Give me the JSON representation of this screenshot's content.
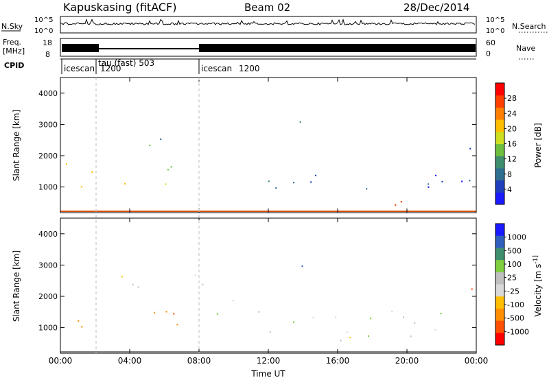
{
  "header": {
    "station": "Kapuskasing (fitACF)",
    "beam": "Beam 02",
    "date": "28/Dec/2014"
  },
  "strips": {
    "nsky_label": "N.Sky",
    "nsky_ticks": [
      "10^5",
      "10^0"
    ],
    "nsearch_label": "N.Search",
    "nsearch_ticks": [
      "10^5",
      "10^0"
    ],
    "freq_label_line1": "Freq.",
    "freq_label_line2": "[MHz]",
    "freq_ticks": [
      "18",
      "8"
    ],
    "nave_label": "Nave",
    "nave_ticks": [
      "60",
      "0"
    ],
    "cpid_label": "CPID",
    "cpid_segments": [
      {
        "start_hour": 0.0,
        "name": "icescan",
        "code": ""
      },
      {
        "start_hour": 2.0,
        "name": "tau (fast) 503",
        "code": "1200"
      },
      {
        "start_hour": 8.0,
        "name": "icescan",
        "code": "1200"
      }
    ]
  },
  "chart_data": [
    {
      "type": "heatmap",
      "panel": "power",
      "ylabel": "Slant Range [km]",
      "xlabel": "Time UT",
      "xlim_hours": [
        0,
        24
      ],
      "x_ticks": [
        "00:00",
        "04:00",
        "08:00",
        "12:00",
        "16:00",
        "20:00",
        "00:00"
      ],
      "ylim_km": [
        180,
        4500
      ],
      "y_ticks": [
        "1000",
        "2000",
        "3000",
        "4000"
      ],
      "colorbar": {
        "label": "Power [dB]",
        "ticks": [
          "4",
          "8",
          "12",
          "16",
          "20",
          "24",
          "28"
        ],
        "colors": [
          "#1a1aff",
          "#1f3fbf",
          "#2f6f8f",
          "#3f8f6f",
          "#6fbf3f",
          "#cfdf1f",
          "#ffbf00",
          "#ff7f00",
          "#ff3f00",
          "#ff0000"
        ]
      },
      "regions": [
        {
          "t0": 0.0,
          "t1": 1.8,
          "r0": 650,
          "r1": 1900,
          "val": 20
        },
        {
          "t0": 0.2,
          "t1": 1.0,
          "r0": 700,
          "r1": 900,
          "val": 28
        },
        {
          "t0": 2.7,
          "t1": 6.9,
          "r0": 950,
          "r1": 1800,
          "val": 18
        },
        {
          "t0": 4.2,
          "t1": 7.5,
          "r0": 2150,
          "r1": 2700,
          "val": 10
        },
        {
          "t0": 8.5,
          "t1": 24.0,
          "r0": 900,
          "r1": 1600,
          "val": 8
        },
        {
          "t0": 13.8,
          "t1": 14.8,
          "r0": 2900,
          "r1": 3600,
          "val": 14
        },
        {
          "t0": 17.0,
          "t1": 22.5,
          "r0": 380,
          "r1": 700,
          "val": 24
        },
        {
          "t0": 23.0,
          "t1": 24.0,
          "r0": 1900,
          "r1": 2400,
          "val": 12
        }
      ]
    },
    {
      "type": "heatmap",
      "panel": "velocity",
      "ylabel": "Slant Range [km]",
      "xlabel": "Time UT",
      "xlim_hours": [
        0,
        24
      ],
      "x_ticks": [
        "00:00",
        "04:00",
        "08:00",
        "12:00",
        "16:00",
        "20:00",
        "00:00"
      ],
      "ylim_km": [
        180,
        4500
      ],
      "y_ticks": [
        "1000",
        "2000",
        "3000",
        "4000"
      ],
      "colorbar": {
        "label": "Velocity [m s^-1]",
        "ticks": [
          "1000",
          "500",
          "100",
          "25",
          "-25",
          "-100",
          "-500",
          "-1000"
        ],
        "colors": [
          "#1a1aff",
          "#2f5fbf",
          "#3f8f6f",
          "#7fcf3f",
          "#bfbfbf",
          "#d9d9d9",
          "#ffbf00",
          "#ff8f00",
          "#ff4f00",
          "#ff0000"
        ]
      },
      "regions": [
        {
          "t0": 0.0,
          "t1": 1.8,
          "r0": 700,
          "r1": 1900,
          "val": -500
        },
        {
          "t0": 2.7,
          "t1": 6.9,
          "r0": 950,
          "r1": 1800,
          "val": -500
        },
        {
          "t0": 3.0,
          "t1": 9.0,
          "r0": 2000,
          "r1": 2700,
          "val": 0
        },
        {
          "t0": 9.0,
          "t1": 12.0,
          "r0": 1200,
          "r1": 2000,
          "val": 100
        },
        {
          "t0": 12.0,
          "t1": 24.0,
          "r0": 600,
          "r1": 1700,
          "val": 0
        },
        {
          "t0": 13.8,
          "t1": 14.8,
          "r0": 2900,
          "r1": 3600,
          "val": 700
        },
        {
          "t0": 23.0,
          "t1": 24.0,
          "r0": 1900,
          "r1": 2400,
          "val": -700
        }
      ]
    }
  ]
}
